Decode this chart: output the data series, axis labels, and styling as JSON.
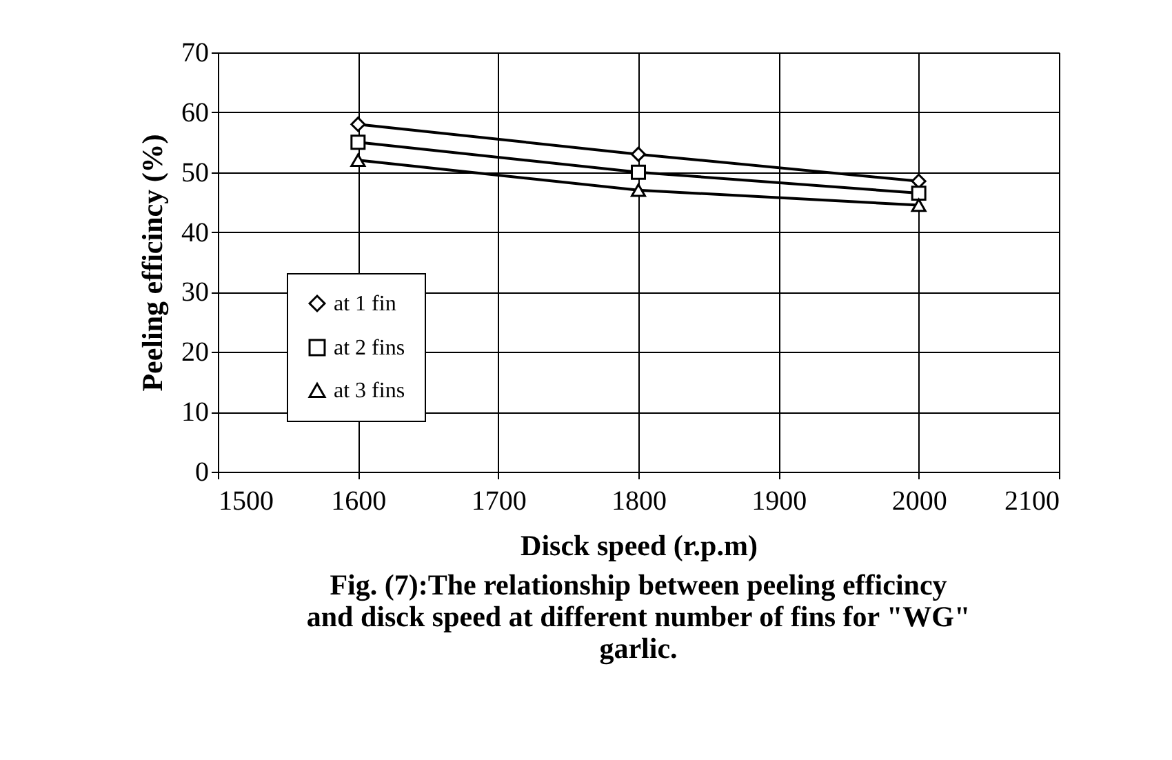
{
  "chart_data": {
    "type": "line",
    "title": "Fig. (7):The relationship between peeling efficincy\nand disck speed at different number of fins for \"WG\"\ngarlic.",
    "xlabel": "Disck speed (r.p.m)",
    "ylabel": "Peeling efficincy (%)",
    "x": [
      1600,
      1800,
      2000
    ],
    "series": [
      {
        "name": "at 1 fin",
        "color": "#000000",
        "marker": "diamond",
        "values": [
          58,
          53,
          48.5
        ]
      },
      {
        "name": "at 2 fins",
        "color": "#000000",
        "marker": "square",
        "values": [
          55,
          50,
          46.5
        ]
      },
      {
        "name": "at 3 fins",
        "color": "#000000",
        "marker": "triangle",
        "values": [
          52,
          47,
          44.5
        ]
      }
    ],
    "xlim": [
      1500,
      2100
    ],
    "xticks": [
      1500,
      1600,
      1700,
      1800,
      1900,
      2000,
      2100
    ],
    "ylim": [
      0,
      70
    ],
    "yticks": [
      0,
      10,
      20,
      30,
      40,
      50,
      60,
      70
    ],
    "grid": true,
    "legend": "left",
    "line_style": "solid"
  }
}
